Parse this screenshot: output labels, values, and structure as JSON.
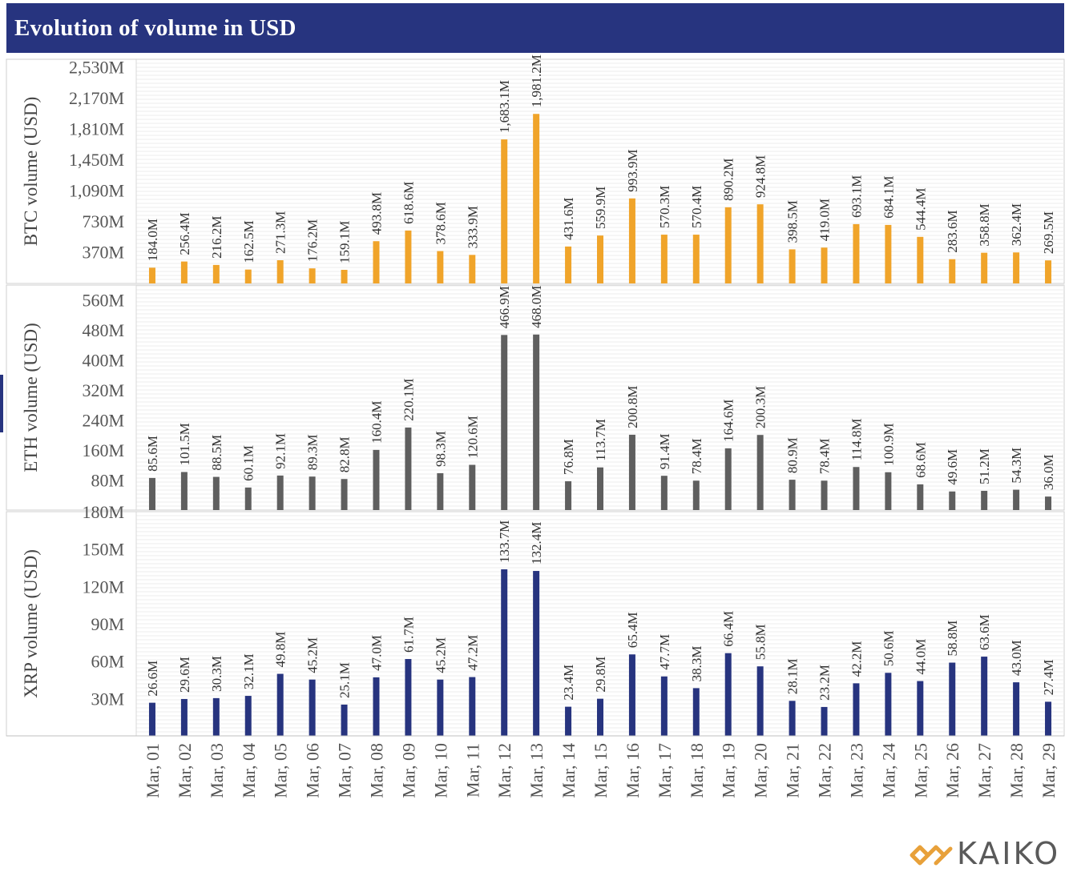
{
  "header": {
    "title": "Evolution of volume in USD"
  },
  "logo": {
    "text": "KAIKO",
    "icon": "kaiko-chain-link-icon",
    "color": "#e8a13a"
  },
  "colors": {
    "btc": "#f0a42a",
    "eth": "#5f5f5f",
    "xrp": "#27347f",
    "title_bg": "#27347f"
  },
  "chart_data": {
    "type": "bar",
    "title": "Evolution of volume in USD",
    "categories": [
      "Mar, 01",
      "Mar, 02",
      "Mar, 03",
      "Mar, 04",
      "Mar, 05",
      "Mar, 06",
      "Mar, 07",
      "Mar, 08",
      "Mar, 09",
      "Mar, 10",
      "Mar, 11",
      "Mar, 12",
      "Mar, 13",
      "Mar, 14",
      "Mar, 15",
      "Mar, 16",
      "Mar, 17",
      "Mar, 18",
      "Mar, 19",
      "Mar, 20",
      "Mar, 21",
      "Mar, 22",
      "Mar, 23",
      "Mar, 24",
      "Mar, 25",
      "Mar, 26",
      "Mar, 27",
      "Mar, 28",
      "Mar, 29"
    ],
    "panels": [
      {
        "name": "btc",
        "ylabel": "BTC volume (USD)",
        "ylim": [
          0,
          2620
        ],
        "yticks": [
          370,
          730,
          1090,
          1450,
          1810,
          2170,
          2530
        ],
        "ytick_labels": [
          "370M",
          "730M",
          "1,090M",
          "1,450M",
          "1,810M",
          "2,170M",
          "2,530M"
        ],
        "color": "#f0a42a",
        "values": [
          184.0,
          256.4,
          216.2,
          162.5,
          271.3,
          176.2,
          159.1,
          493.8,
          618.6,
          378.6,
          333.9,
          1683.1,
          1981.2,
          431.6,
          559.9,
          993.9,
          570.3,
          570.4,
          890.2,
          924.8,
          398.5,
          419.0,
          693.1,
          684.1,
          544.4,
          283.6,
          358.8,
          362.4,
          269.5
        ],
        "labels": [
          "184.0M",
          "256.4M",
          "216.2M",
          "162.5M",
          "271.3M",
          "176.2M",
          "159.1M",
          "493.8M",
          "618.6M",
          "378.6M",
          "333.9M",
          "1,683.1M",
          "1,981.2M",
          "431.6M",
          "559.9M",
          "993.9M",
          "570.3M",
          "570.4M",
          "890.2M",
          "924.8M",
          "398.5M",
          "419.0M",
          "693.1M",
          "684.1M",
          "544.4M",
          "283.6M",
          "358.8M",
          "362.4M",
          "269.5M"
        ]
      },
      {
        "name": "eth",
        "ylabel": "ETH volume (USD)",
        "ylim": [
          0,
          600
        ],
        "yticks": [
          80,
          160,
          240,
          320,
          400,
          480,
          560
        ],
        "ytick_labels": [
          "80M",
          "160M",
          "240M",
          "320M",
          "400M",
          "480M",
          "560M"
        ],
        "color": "#5f5f5f",
        "values": [
          85.6,
          101.5,
          88.5,
          60.1,
          92.1,
          89.3,
          82.8,
          160.4,
          220.1,
          98.3,
          120.6,
          466.9,
          468.0,
          76.8,
          113.7,
          200.8,
          91.4,
          78.4,
          164.6,
          200.3,
          80.9,
          78.4,
          114.8,
          100.9,
          68.6,
          49.6,
          51.2,
          54.3,
          36.0
        ],
        "labels": [
          "85.6M",
          "101.5M",
          "88.5M",
          "60.1M",
          "92.1M",
          "89.3M",
          "82.8M",
          "160.4M",
          "220.1M",
          "98.3M",
          "120.6M",
          "466.9M",
          "468.0M",
          "76.8M",
          "113.7M",
          "200.8M",
          "91.4M",
          "78.4M",
          "164.6M",
          "200.3M",
          "80.9M",
          "78.4M",
          "114.8M",
          "100.9M",
          "68.6M",
          "49.6M",
          "51.2M",
          "54.3M",
          "36.0M"
        ]
      },
      {
        "name": "xrp",
        "ylabel": "XRP volume (USD)",
        "ylim": [
          0,
          180
        ],
        "yticks": [
          30,
          60,
          90,
          120,
          150,
          180
        ],
        "ytick_labels": [
          "30M",
          "60M",
          "90M",
          "120M",
          "150M",
          "180M"
        ],
        "color": "#27347f",
        "values": [
          26.6,
          29.6,
          30.3,
          32.1,
          49.8,
          45.2,
          25.1,
          47.0,
          61.7,
          45.2,
          47.2,
          133.7,
          132.4,
          23.4,
          29.8,
          65.4,
          47.7,
          38.3,
          66.4,
          55.8,
          28.1,
          23.2,
          42.2,
          50.6,
          44.0,
          58.8,
          63.6,
          43.0,
          27.4
        ],
        "labels": [
          "26.6M",
          "29.6M",
          "30.3M",
          "32.1M",
          "49.8M",
          "45.2M",
          "25.1M",
          "47.0M",
          "61.7M",
          "45.2M",
          "47.2M",
          "133.7M",
          "132.4M",
          "23.4M",
          "29.8M",
          "65.4M",
          "47.7M",
          "38.3M",
          "66.4M",
          "55.8M",
          "28.1M",
          "23.2M",
          "42.2M",
          "50.6M",
          "44.0M",
          "58.8M",
          "63.6M",
          "43.0M",
          "27.4M"
        ]
      }
    ]
  }
}
